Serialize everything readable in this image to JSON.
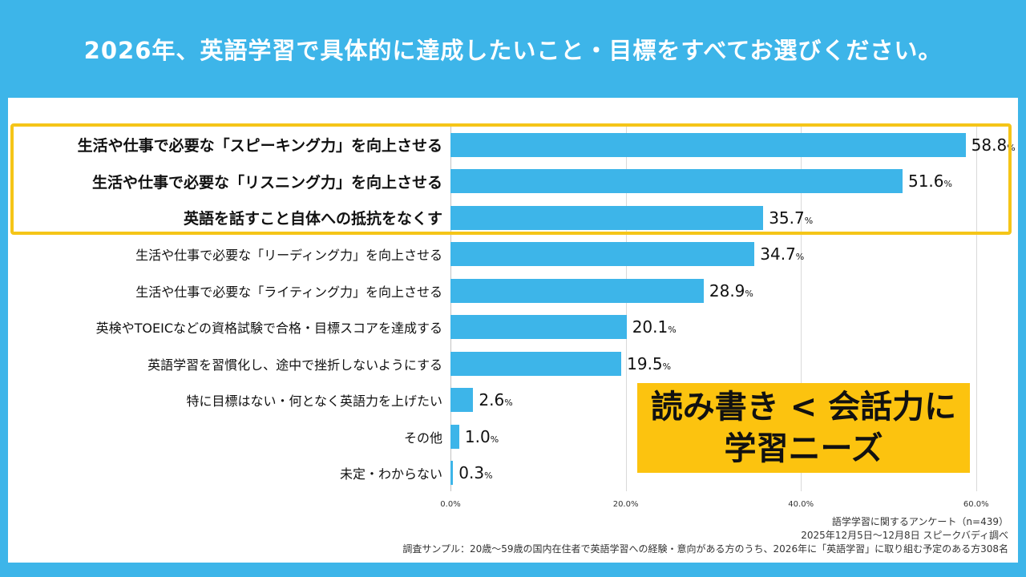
{
  "title": "2026年、英語学習で具体的に達成したいこと・目標をすべてお選びください。",
  "chart_data": {
    "type": "bar",
    "orientation": "horizontal",
    "categories": [
      "生活や仕事で必要な「スピーキング力」を向上させる",
      "生活や仕事で必要な「リスニング力」を向上させる",
      "英語を話すこと自体への抵抗をなくす",
      "生活や仕事で必要な「リーディング力」を向上させる",
      "生活や仕事で必要な「ライティング力」を向上させる",
      "英検やTOEICなどの資格試験で合格・目標スコアを達成する",
      "英語学習を習慣化し、途中で挫折しないようにする",
      "特に目標はない・何となく英語力を上げたい",
      "その他",
      "未定・わからない"
    ],
    "values": [
      58.8,
      51.6,
      35.7,
      34.7,
      28.9,
      20.1,
      19.5,
      2.6,
      1.0,
      0.3
    ],
    "value_labels": [
      "58.8",
      "51.6",
      "35.7",
      "34.7",
      "28.9",
      "20.1",
      "19.5",
      "2.6",
      "1.0",
      "0.3"
    ],
    "unit": "%",
    "xlim": [
      0,
      60
    ],
    "x_tick_values": [
      0,
      20,
      40,
      60
    ],
    "x_tick_labels": [
      "0.0%",
      "20.0%",
      "40.0%",
      "60.0%"
    ],
    "highlight_rows": [
      0,
      1,
      2
    ],
    "bar_color": "#3db5e9",
    "highlight_border_color": "#f5c518",
    "grid": true,
    "legend": "none"
  },
  "callout": {
    "line1": "読み書き < 会話力に",
    "line2": "学習ニーズ",
    "background_color": "#fcc30f"
  },
  "footer": {
    "lines": [
      "語学学習に関するアンケート（n=439）",
      "2025年12月5日〜12月8日 スピークバディ調べ",
      "調査サンプル：20歳〜59歳の国内在住者で英語学習への経験・意向がある方のうち、2026年に「英語学習」に取り組む予定のある方308名"
    ]
  }
}
